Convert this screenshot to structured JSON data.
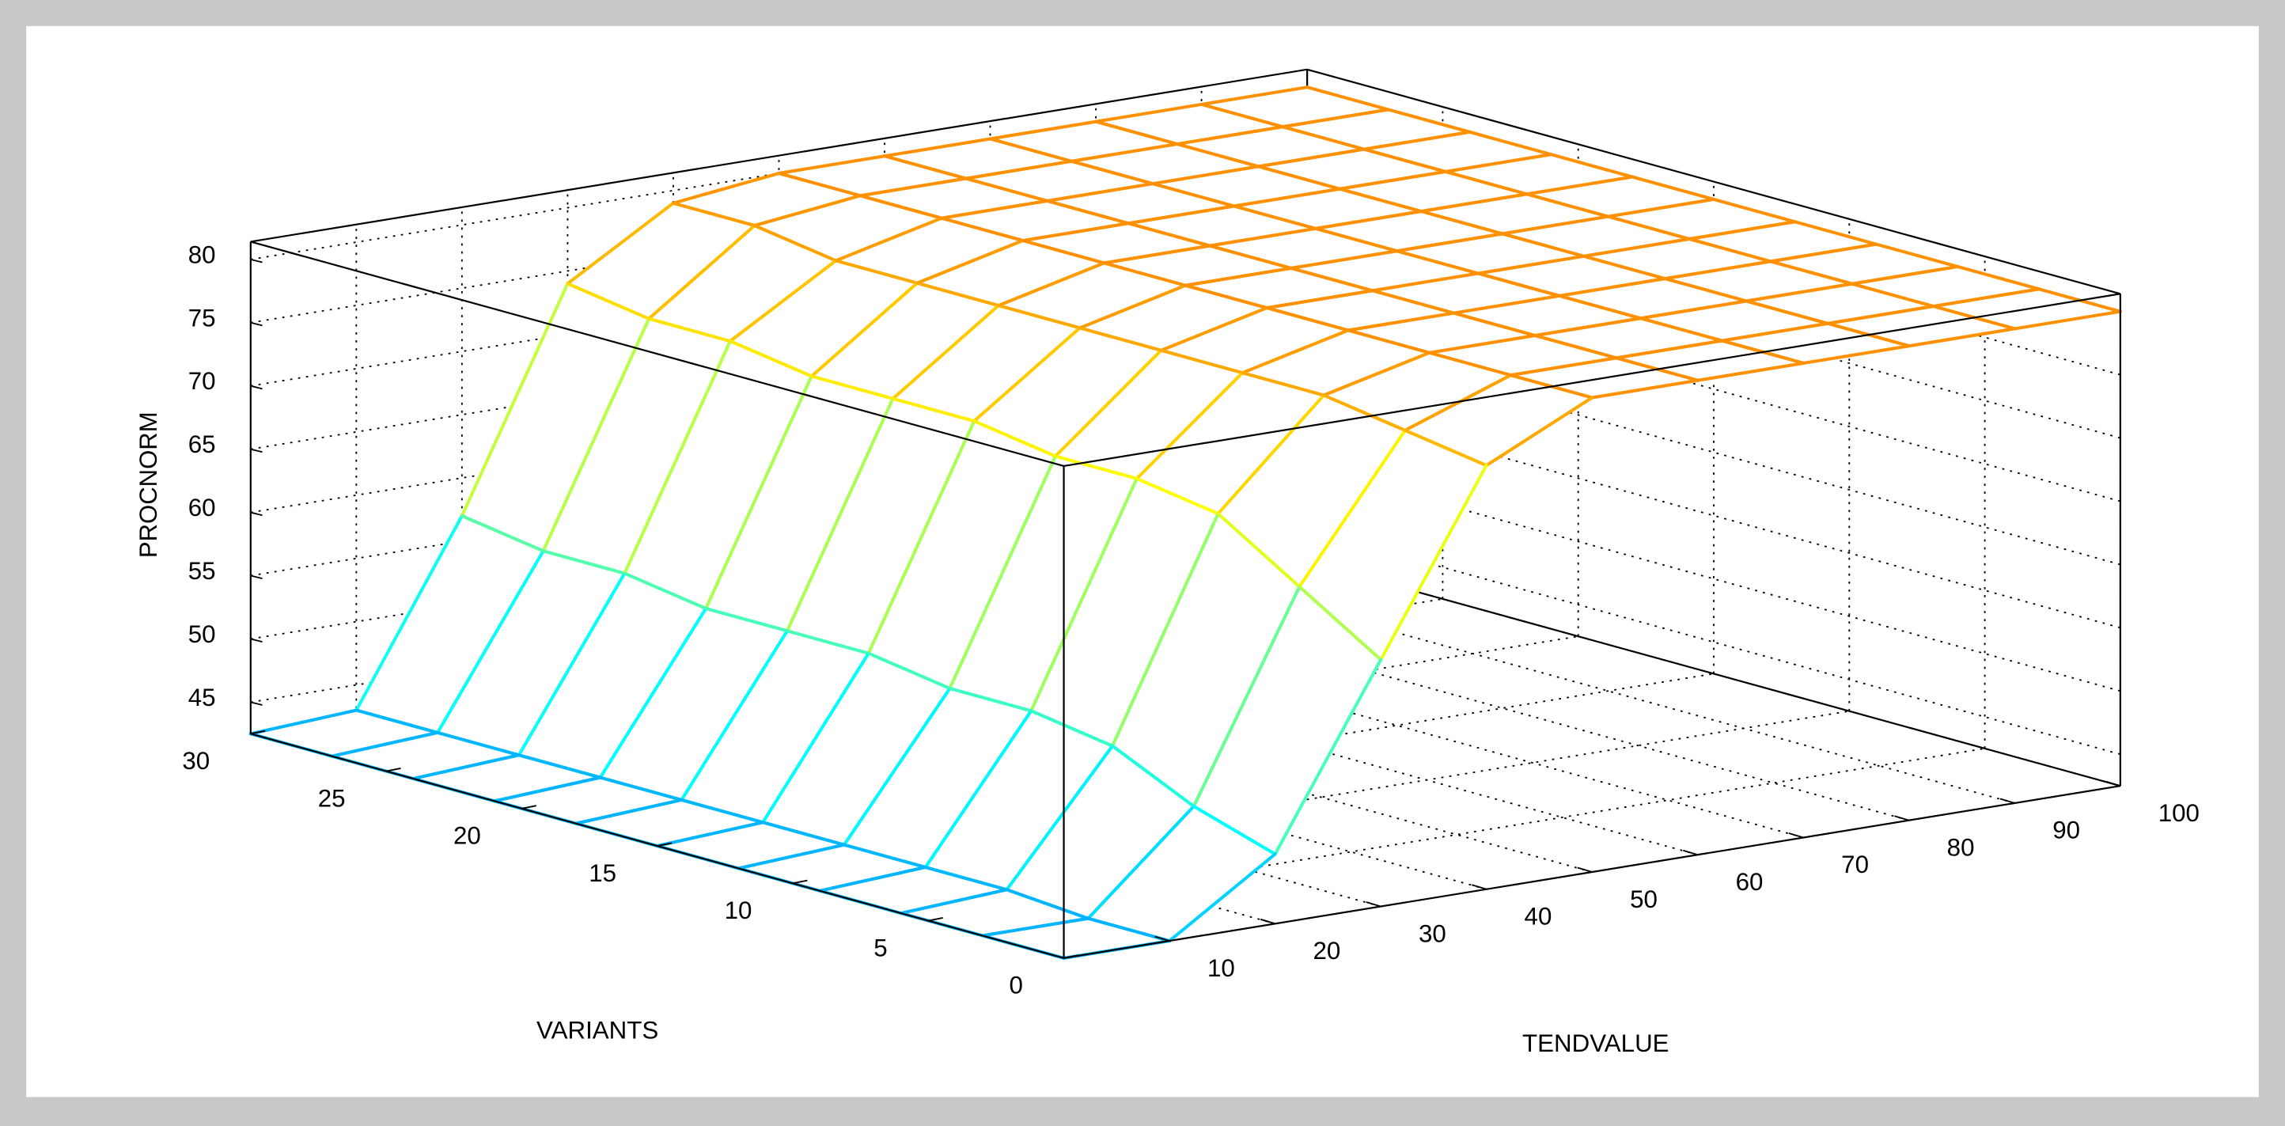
{
  "chart_data": {
    "type": "mesh",
    "xlabel": "VARIANTS",
    "ylabel": "TENDVALUE",
    "zlabel": "PROCNORM",
    "x": [
      0,
      3,
      6,
      9,
      12,
      15,
      18,
      21,
      24,
      27,
      30
    ],
    "y": [
      0,
      10,
      20,
      30,
      40,
      50,
      60,
      70,
      80,
      90,
      100
    ],
    "z": [
      [
        42.5,
        42.5,
        48,
        62,
        76,
        80,
        80,
        80,
        80,
        80,
        80
      ],
      [
        42.5,
        42.5,
        50,
        66,
        77,
        80,
        80,
        80,
        80,
        80,
        80
      ],
      [
        42.5,
        43,
        53,
        70,
        78,
        80,
        80,
        80,
        80,
        80,
        80
      ],
      [
        42.5,
        43,
        54,
        71,
        78,
        80,
        80,
        80,
        80,
        80,
        80
      ],
      [
        42.5,
        43,
        54,
        71,
        78,
        80,
        80,
        80,
        80,
        80,
        80
      ],
      [
        42.5,
        43,
        55,
        72,
        78,
        80,
        80,
        80,
        80,
        80,
        80
      ],
      [
        42.5,
        43,
        55,
        72,
        78,
        80,
        80,
        80,
        80,
        80,
        80
      ],
      [
        42.5,
        43,
        55,
        72,
        78,
        80,
        80,
        80,
        80,
        80,
        80
      ],
      [
        42.5,
        43,
        56,
        73,
        78,
        80,
        80,
        80,
        80,
        80,
        80
      ],
      [
        42.5,
        43,
        56,
        73,
        79,
        80,
        80,
        80,
        80,
        80,
        80
      ],
      [
        42.5,
        43,
        57,
        74,
        79,
        80,
        80,
        80,
        80,
        80,
        80
      ]
    ],
    "xlim": [
      0,
      30
    ],
    "ylim": [
      0,
      100
    ],
    "zlim": [
      42.5,
      81.4
    ],
    "xticks": [
      0,
      5,
      10,
      15,
      20,
      25,
      30
    ],
    "yticks": [
      10,
      20,
      30,
      40,
      50,
      60,
      70,
      80,
      90,
      100
    ],
    "zticks": [
      45,
      50,
      55,
      60,
      65,
      70,
      75,
      80
    ],
    "grid": true
  }
}
